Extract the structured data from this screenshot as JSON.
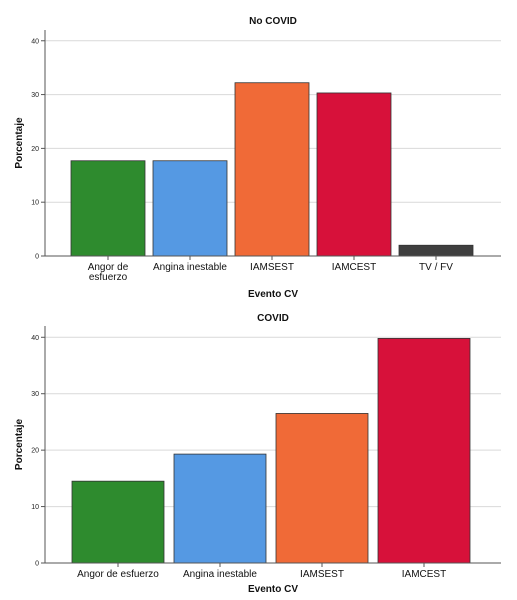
{
  "chart_data": [
    {
      "type": "bar",
      "title": "No COVID",
      "xlabel": "Evento CV",
      "ylabel": "Porcentaje",
      "ylim": [
        0,
        42
      ],
      "yticks": [
        0,
        10,
        20,
        30,
        40
      ],
      "grid": true,
      "categories": [
        {
          "lines": [
            "Angor de",
            "esfuerzo"
          ]
        },
        {
          "lines": [
            "Angina inestable"
          ]
        },
        {
          "lines": [
            "IAMSEST"
          ]
        },
        {
          "lines": [
            "IAMCEST"
          ]
        },
        {
          "lines": [
            "TV / FV"
          ]
        }
      ],
      "values": [
        17.7,
        17.7,
        32.2,
        30.3,
        2.0
      ],
      "colors": [
        "#2e8b2e",
        "#5599e3",
        "#f06a37",
        "#d7113a",
        "#3f3f3f"
      ]
    },
    {
      "type": "bar",
      "title": "COVID",
      "xlabel": "Evento CV",
      "ylabel": "Porcentaje",
      "ylim": [
        0,
        42
      ],
      "yticks": [
        0,
        10,
        20,
        30,
        40
      ],
      "grid": true,
      "categories": [
        {
          "lines": [
            "Angor de esfuerzo"
          ]
        },
        {
          "lines": [
            "Angina inestable"
          ]
        },
        {
          "lines": [
            "IAMSEST"
          ]
        },
        {
          "lines": [
            "IAMCEST"
          ]
        }
      ],
      "values": [
        14.5,
        19.3,
        26.5,
        39.8
      ],
      "colors": [
        "#2e8b2e",
        "#5599e3",
        "#f06a37",
        "#d7113a"
      ]
    }
  ]
}
